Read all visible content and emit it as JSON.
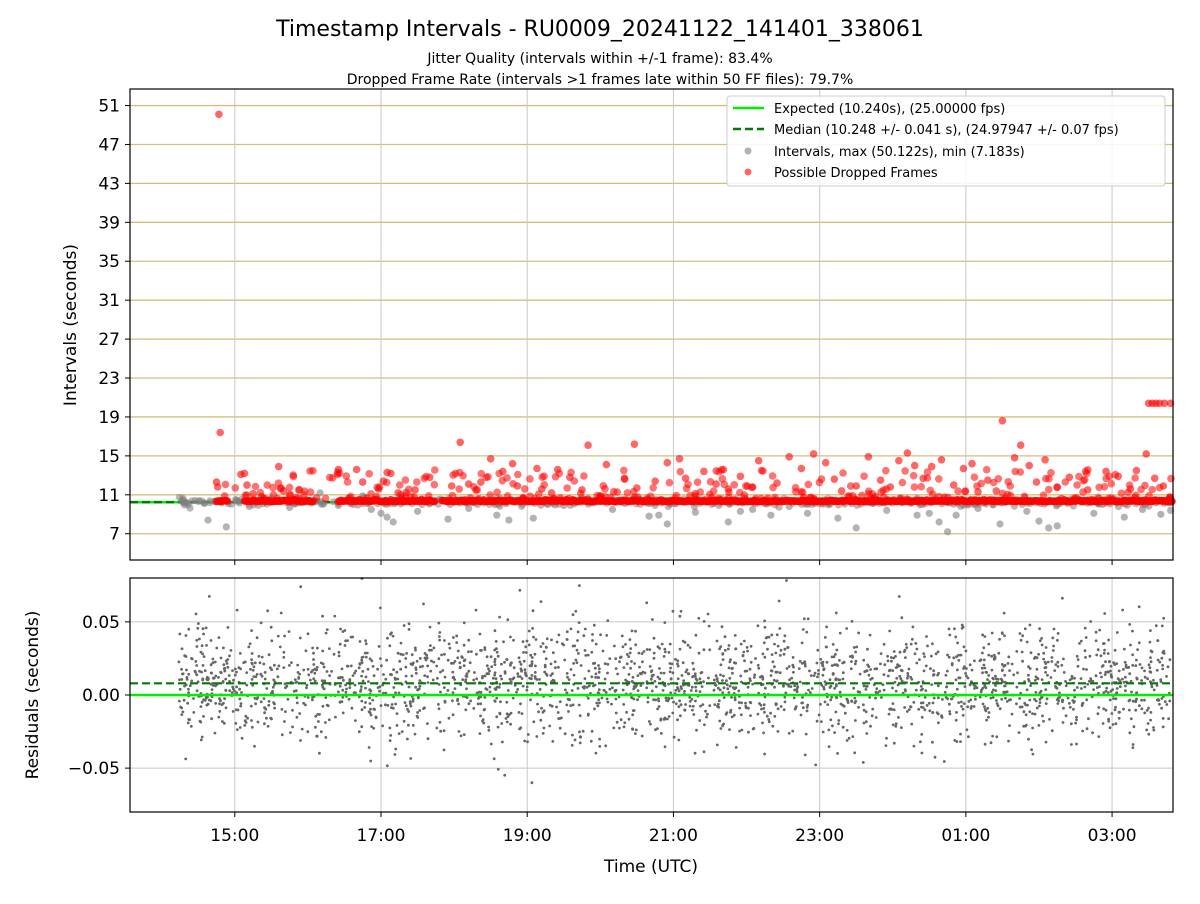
{
  "title": "Timestamp Intervals - RU0009_20241122_141401_338061",
  "subtitle_1": "Jitter Quality (intervals within +/-1 frame): 83.4%",
  "subtitle_2": "Dropped Frame Rate (intervals >1 frames late within 50 FF files): 79.7%",
  "colors": {
    "expected": "#00ee00",
    "median": "#007a00",
    "intervals": "#808080",
    "dropped": "#ff0000",
    "hgrid_top": "#d4bf7a",
    "grid": "#c8c8c8"
  },
  "chart_data": [
    {
      "type": "scatter",
      "ylabel": "Intervals (seconds)",
      "ylim": [
        4.3,
        52.7
      ],
      "y_ticks": [
        7,
        11,
        15,
        19,
        23,
        27,
        31,
        35,
        39,
        43,
        47,
        51
      ],
      "x_range_utc": [
        "13:34",
        "03:50"
      ],
      "x_ticks": [
        "15:00",
        "17:00",
        "19:00",
        "21:00",
        "23:00",
        "01:00",
        "03:00"
      ],
      "grid": "horizontal and vertical",
      "legend_position": "upper right",
      "legend": [
        "Expected (10.240s), (25.00000 fps)",
        "Median (10.248 +/- 0.041 s), (24.97947 +/- 0.07 fps)",
        "Intervals, max (50.122s), min (7.183s)",
        "Possible Dropped Frames"
      ],
      "expected_interval": 10.24,
      "median_interval": 10.248,
      "series": [
        {
          "name": "Possible Dropped Frames",
          "points": [
            [
              "14:47",
              50.1
            ],
            [
              "14:48",
              17.4
            ],
            [
              "14:45",
              12.3
            ],
            [
              "14:46",
              11.8
            ],
            [
              "15:05",
              13.1
            ],
            [
              "15:08",
              13.2
            ],
            [
              "15:10",
              12.0
            ],
            [
              "15:15",
              11.1
            ],
            [
              "15:22",
              10.8
            ],
            [
              "15:36",
              13.9
            ],
            [
              "15:38",
              11.7
            ],
            [
              "15:40",
              11.4
            ],
            [
              "16:25",
              13.6
            ],
            [
              "16:40",
              13.6
            ],
            [
              "16:45",
              12.3
            ],
            [
              "16:58",
              11.6
            ],
            [
              "17:02",
              12.4
            ],
            [
              "17:05",
              13.3
            ],
            [
              "17:08",
              13.2
            ],
            [
              "17:14",
              11.2
            ],
            [
              "17:20",
              10.9
            ],
            [
              "17:28",
              11.5
            ],
            [
              "17:40",
              12.8
            ],
            [
              "17:58",
              11.9
            ],
            [
              "18:05",
              16.4
            ],
            [
              "18:12",
              12.1
            ],
            [
              "18:18",
              11.5
            ],
            [
              "18:22",
              12.3
            ],
            [
              "18:30",
              14.7
            ],
            [
              "18:40",
              13.4
            ],
            [
              "18:48",
              14.2
            ],
            [
              "18:52",
              11.9
            ],
            [
              "19:08",
              13.7
            ],
            [
              "19:12",
              11.6
            ],
            [
              "19:20",
              11.2
            ],
            [
              "19:25",
              13.6
            ],
            [
              "19:35",
              12.8
            ],
            [
              "19:45",
              11.5
            ],
            [
              "19:50",
              16.1
            ],
            [
              "20:00",
              10.9
            ],
            [
              "20:05",
              14.1
            ],
            [
              "20:20",
              12.6
            ],
            [
              "20:28",
              16.2
            ],
            [
              "20:30",
              11.7
            ],
            [
              "20:45",
              12.4
            ],
            [
              "20:55",
              14.3
            ],
            [
              "21:05",
              14.7
            ],
            [
              "21:10",
              12.7
            ],
            [
              "21:18",
              11.1
            ],
            [
              "21:25",
              13.4
            ],
            [
              "21:35",
              12.1
            ],
            [
              "21:45",
              11.6
            ],
            [
              "21:55",
              12.9
            ],
            [
              "22:05",
              11.8
            ],
            [
              "22:10",
              14.5
            ],
            [
              "22:25",
              12.2
            ],
            [
              "22:35",
              14.9
            ],
            [
              "22:45",
              13.7
            ],
            [
              "22:55",
              15.2
            ],
            [
              "23:05",
              14.3
            ],
            [
              "23:12",
              12.6
            ],
            [
              "23:18",
              11.4
            ],
            [
              "23:30",
              11.9
            ],
            [
              "23:40",
              14.9
            ],
            [
              "23:50",
              12.5
            ],
            [
              "23:58",
              11.8
            ],
            [
              "00:05",
              14.5
            ],
            [
              "00:12",
              15.3
            ],
            [
              "00:18",
              14.0
            ],
            [
              "00:25",
              12.7
            ],
            [
              "00:32",
              13.9
            ],
            [
              "00:40",
              14.6
            ],
            [
              "00:50",
              12.0
            ],
            [
              "00:58",
              13.7
            ],
            [
              "01:05",
              14.2
            ],
            [
              "01:10",
              11.3
            ],
            [
              "01:18",
              12.5
            ],
            [
              "01:25",
              11.4
            ],
            [
              "01:30",
              18.6
            ],
            [
              "01:40",
              14.8
            ],
            [
              "01:45",
              16.1
            ],
            [
              "01:52",
              14.0
            ],
            [
              "01:58",
              12.3
            ],
            [
              "02:05",
              14.6
            ],
            [
              "02:15",
              11.8
            ],
            [
              "02:25",
              12.8
            ],
            [
              "02:40",
              11.5
            ],
            [
              "02:55",
              13.4
            ],
            [
              "03:05",
              12.9
            ],
            [
              "03:15",
              11.6
            ],
            [
              "03:20",
              13.5
            ],
            [
              "03:28",
              15.2
            ],
            [
              "03:30",
              20.4
            ],
            [
              "03:33",
              20.4
            ],
            [
              "03:36",
              20.4
            ],
            [
              "03:39",
              20.4
            ],
            [
              "03:43",
              20.4
            ],
            [
              "03:48",
              20.4
            ],
            [
              "03:35",
              12.7
            ],
            [
              "03:42",
              11.9
            ]
          ]
        },
        {
          "name": "Intervals",
          "points": [
            [
              "14:38",
              8.4
            ],
            [
              "14:53",
              7.7
            ],
            [
              "15:12",
              9.8
            ],
            [
              "15:45",
              9.7
            ],
            [
              "15:55",
              10.5
            ],
            [
              "16:10",
              11.2
            ],
            [
              "16:25",
              9.9
            ],
            [
              "16:45",
              10.9
            ],
            [
              "16:52",
              9.5
            ],
            [
              "17:00",
              9.1
            ],
            [
              "17:05",
              8.7
            ],
            [
              "17:10",
              8.2
            ],
            [
              "17:30",
              9.3
            ],
            [
              "17:55",
              8.5
            ],
            [
              "18:12",
              9.6
            ],
            [
              "18:35",
              8.9
            ],
            [
              "18:45",
              8.4
            ],
            [
              "19:05",
              8.6
            ],
            [
              "19:30",
              9.9
            ],
            [
              "20:10",
              9.5
            ],
            [
              "20:40",
              8.8
            ],
            [
              "20:48",
              8.9
            ],
            [
              "20:55",
              8.0
            ],
            [
              "21:18",
              9.2
            ],
            [
              "21:45",
              8.2
            ],
            [
              "21:55",
              9.3
            ],
            [
              "22:05",
              9.5
            ],
            [
              "22:20",
              8.9
            ],
            [
              "22:35",
              9.8
            ],
            [
              "22:50",
              9.1
            ],
            [
              "23:15",
              8.6
            ],
            [
              "23:30",
              7.6
            ],
            [
              "23:55",
              9.4
            ],
            [
              "00:20",
              8.9
            ],
            [
              "00:30",
              9.1
            ],
            [
              "00:38",
              8.2
            ],
            [
              "00:45",
              7.2
            ],
            [
              "00:52",
              8.9
            ],
            [
              "01:10",
              9.6
            ],
            [
              "01:28",
              8.0
            ],
            [
              "01:50",
              9.3
            ],
            [
              "02:00",
              8.3
            ],
            [
              "02:08",
              7.6
            ],
            [
              "02:15",
              7.8
            ],
            [
              "02:45",
              9.1
            ],
            [
              "03:10",
              8.7
            ],
            [
              "03:25",
              9.5
            ],
            [
              "03:40",
              9.0
            ],
            [
              "03:48",
              9.4
            ],
            [
              "15:30",
              10.6
            ],
            [
              "19:45",
              10.7
            ]
          ]
        }
      ]
    },
    {
      "type": "scatter",
      "ylabel": "Residuals (seconds)",
      "xlabel": "Time (UTC)",
      "ylim": [
        -0.08,
        0.08
      ],
      "y_tick_labels": [
        "0.05",
        "0.00",
        "−0.05"
      ],
      "y_ticks": [
        0.05,
        0.0,
        -0.05
      ],
      "x_ticks": [
        "15:00",
        "17:00",
        "19:00",
        "21:00",
        "23:00",
        "01:00",
        "03:00"
      ],
      "grid": "horizontal and vertical",
      "expected_residual": 0.0,
      "median_residual": 0.008,
      "series": [
        {
          "name": "Residuals",
          "time_range": [
            "14:14",
            "03:50"
          ],
          "center": 0.008,
          "spread": 0.02,
          "outlier_extent": 0.08,
          "point_count": 2400
        }
      ]
    }
  ]
}
